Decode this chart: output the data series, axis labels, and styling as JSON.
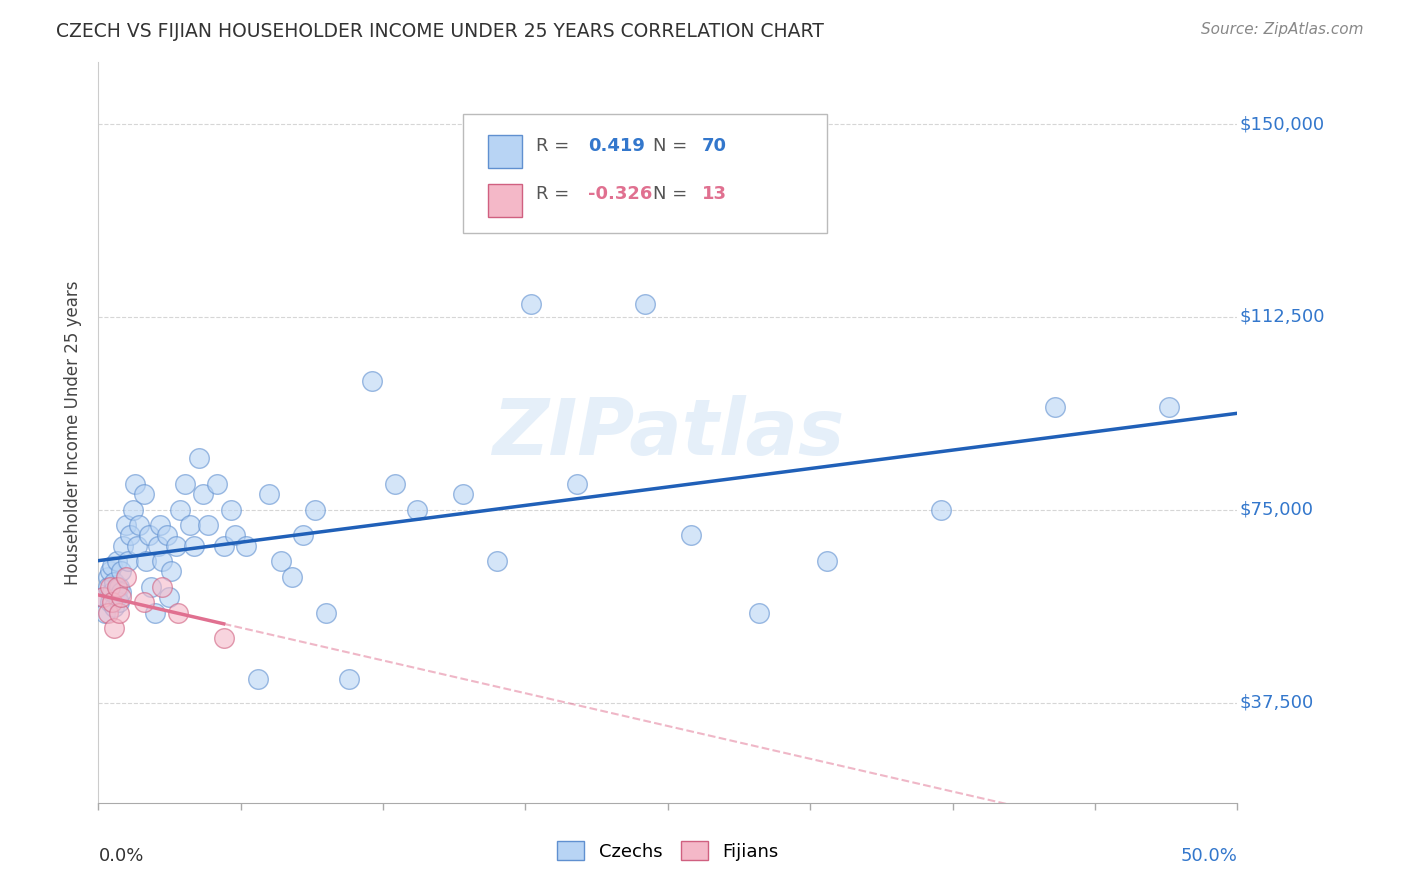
{
  "title": "CZECH VS FIJIAN HOUSEHOLDER INCOME UNDER 25 YEARS CORRELATION CHART",
  "source": "Source: ZipAtlas.com",
  "ylabel": "Householder Income Under 25 years",
  "ytick_labels": [
    "$37,500",
    "$75,000",
    "$112,500",
    "$150,000"
  ],
  "ytick_values": [
    37500,
    75000,
    112500,
    150000
  ],
  "ylim": [
    18000,
    162000
  ],
  "xlim": [
    0.0,
    0.5
  ],
  "watermark": "ZIPatlas",
  "czechs_x": [
    0.002,
    0.003,
    0.004,
    0.004,
    0.005,
    0.005,
    0.006,
    0.006,
    0.007,
    0.007,
    0.008,
    0.008,
    0.009,
    0.009,
    0.01,
    0.01,
    0.011,
    0.012,
    0.013,
    0.014,
    0.015,
    0.016,
    0.017,
    0.018,
    0.02,
    0.021,
    0.022,
    0.023,
    0.025,
    0.026,
    0.027,
    0.028,
    0.03,
    0.031,
    0.032,
    0.034,
    0.036,
    0.038,
    0.04,
    0.042,
    0.044,
    0.046,
    0.048,
    0.052,
    0.055,
    0.058,
    0.06,
    0.065,
    0.07,
    0.075,
    0.08,
    0.085,
    0.09,
    0.095,
    0.1,
    0.11,
    0.12,
    0.13,
    0.14,
    0.16,
    0.175,
    0.19,
    0.21,
    0.24,
    0.26,
    0.29,
    0.32,
    0.37,
    0.42,
    0.47
  ],
  "czechs_y": [
    58000,
    55000,
    62000,
    60000,
    57000,
    63000,
    59000,
    64000,
    56000,
    61000,
    58000,
    65000,
    60000,
    57000,
    63000,
    59000,
    68000,
    72000,
    65000,
    70000,
    75000,
    80000,
    68000,
    72000,
    78000,
    65000,
    70000,
    60000,
    55000,
    68000,
    72000,
    65000,
    70000,
    58000,
    63000,
    68000,
    75000,
    80000,
    72000,
    68000,
    85000,
    78000,
    72000,
    80000,
    68000,
    75000,
    70000,
    68000,
    42000,
    78000,
    65000,
    62000,
    70000,
    75000,
    55000,
    42000,
    100000,
    80000,
    75000,
    78000,
    65000,
    115000,
    80000,
    115000,
    70000,
    55000,
    65000,
    75000,
    95000,
    95000
  ],
  "fijians_x": [
    0.002,
    0.004,
    0.005,
    0.006,
    0.007,
    0.008,
    0.009,
    0.01,
    0.012,
    0.02,
    0.028,
    0.035,
    0.055
  ],
  "fijians_y": [
    58000,
    55000,
    60000,
    57000,
    52000,
    60000,
    55000,
    58000,
    62000,
    57000,
    60000,
    55000,
    50000
  ],
  "czech_line_color": "#2060b8",
  "fijian_line_color": "#e07090",
  "czech_scatter_fill": "#b8d4f4",
  "czech_scatter_edge": "#6090d0",
  "fijian_scatter_fill": "#f4b8c8",
  "fijian_scatter_edge": "#d06080",
  "background_color": "#ffffff",
  "grid_color": "#cccccc",
  "r_czech": "0.419",
  "n_czech": "70",
  "r_fijian": "-0.326",
  "n_fijian": "13"
}
